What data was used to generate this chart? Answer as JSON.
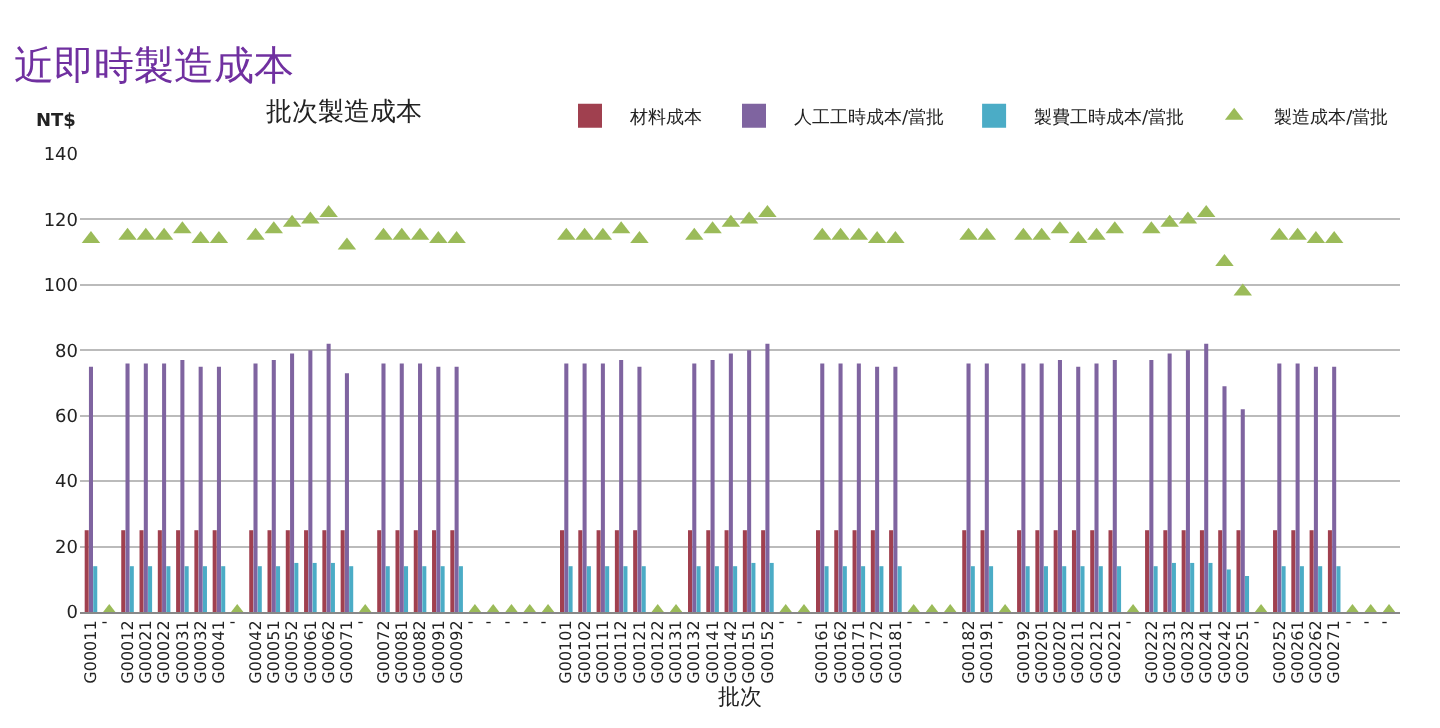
{
  "chart_data": {
    "type": "bar",
    "title": "近即時製造成本",
    "subtitle": "批次製造成本",
    "xlabel": "批次",
    "ylabel": "NT$",
    "categories": [
      "G00011",
      "'",
      "G00012",
      "G00021",
      "G00022",
      "G00031",
      "G00032",
      "G00041",
      "'",
      "G00042",
      "G00051",
      "G00052",
      "G00061",
      "G00062",
      "G00071",
      "'",
      "G00072",
      "G00081",
      "G00082",
      "G00091",
      "G00092",
      "'",
      "'",
      "'",
      "'",
      "'",
      "G00101",
      "G00102",
      "G00111",
      "G00112",
      "G00121",
      "G00122",
      "G00131",
      "G00132",
      "G00141",
      "G00142",
      "G00151",
      "G00152",
      "'",
      "'",
      "G00161",
      "G00162",
      "G00171",
      "G00172",
      "G00181",
      "'",
      "'",
      "'",
      "G00182",
      "G00191",
      "'",
      "G00192",
      "G00201",
      "G00202",
      "G00211",
      "G00212",
      "G00221",
      "'",
      "G00222",
      "G00231",
      "G00232",
      "G00241",
      "G00242",
      "G00251",
      "'",
      "G00252",
      "G00261",
      "G00262",
      "G00271",
      "'",
      "'",
      "'"
    ],
    "series": [
      {
        "name": "材料成本",
        "color": "#a0404f",
        "values": [
          25,
          null,
          25,
          25,
          25,
          25,
          25,
          25,
          null,
          25,
          25,
          25,
          25,
          25,
          25,
          null,
          25,
          25,
          25,
          25,
          25,
          null,
          null,
          null,
          null,
          null,
          25,
          25,
          25,
          25,
          25,
          null,
          null,
          25,
          25,
          25,
          25,
          25,
          null,
          null,
          25,
          25,
          25,
          25,
          25,
          null,
          null,
          null,
          25,
          25,
          null,
          25,
          25,
          25,
          25,
          25,
          25,
          null,
          25,
          25,
          25,
          25,
          25,
          25,
          null,
          25,
          25,
          25,
          25,
          null,
          null,
          null
        ]
      },
      {
        "name": "人工工時成本/當批",
        "color": "#7f64a0",
        "values": [
          75,
          null,
          76,
          76,
          76,
          77,
          75,
          75,
          null,
          76,
          77,
          79,
          80,
          82,
          73,
          null,
          76,
          76,
          76,
          75,
          75,
          null,
          null,
          null,
          null,
          null,
          76,
          76,
          76,
          77,
          75,
          null,
          null,
          76,
          77,
          79,
          80,
          82,
          null,
          null,
          76,
          76,
          76,
          75,
          75,
          null,
          null,
          null,
          76,
          76,
          null,
          76,
          76,
          77,
          75,
          76,
          77,
          null,
          77,
          79,
          80,
          82,
          69,
          62,
          null,
          76,
          76,
          75,
          75,
          null,
          null,
          null
        ]
      },
      {
        "name": "製費工時成本/當批",
        "color": "#4bacc6",
        "values": [
          14,
          null,
          14,
          14,
          14,
          14,
          14,
          14,
          null,
          14,
          14,
          15,
          15,
          15,
          14,
          null,
          14,
          14,
          14,
          14,
          14,
          null,
          null,
          null,
          null,
          null,
          14,
          14,
          14,
          14,
          14,
          null,
          null,
          14,
          14,
          14,
          15,
          15,
          null,
          null,
          14,
          14,
          14,
          14,
          14,
          null,
          null,
          null,
          14,
          14,
          null,
          14,
          14,
          14,
          14,
          14,
          14,
          null,
          14,
          15,
          15,
          15,
          13,
          11,
          null,
          14,
          14,
          14,
          14,
          null,
          null,
          null
        ]
      },
      {
        "name": "製造成本/當批",
        "color": "#9bbb59",
        "type": "scatter",
        "marker": "triangle",
        "values": [
          114,
          0,
          115,
          115,
          115,
          117,
          114,
          114,
          0,
          115,
          117,
          119,
          120,
          122,
          112,
          0,
          115,
          115,
          115,
          114,
          114,
          0,
          0,
          0,
          0,
          0,
          115,
          115,
          115,
          117,
          114,
          0,
          0,
          115,
          117,
          119,
          120,
          122,
          0,
          0,
          115,
          115,
          115,
          114,
          114,
          0,
          0,
          0,
          115,
          115,
          0,
          115,
          115,
          117,
          114,
          115,
          117,
          0,
          117,
          119,
          120,
          122,
          107,
          98,
          0,
          115,
          115,
          114,
          114,
          0,
          0,
          0
        ]
      }
    ],
    "ylim": [
      0,
      140
    ],
    "yticks": [
      0,
      20,
      40,
      60,
      80,
      100,
      120,
      140
    ],
    "grid": "y",
    "legend": "top right"
  }
}
